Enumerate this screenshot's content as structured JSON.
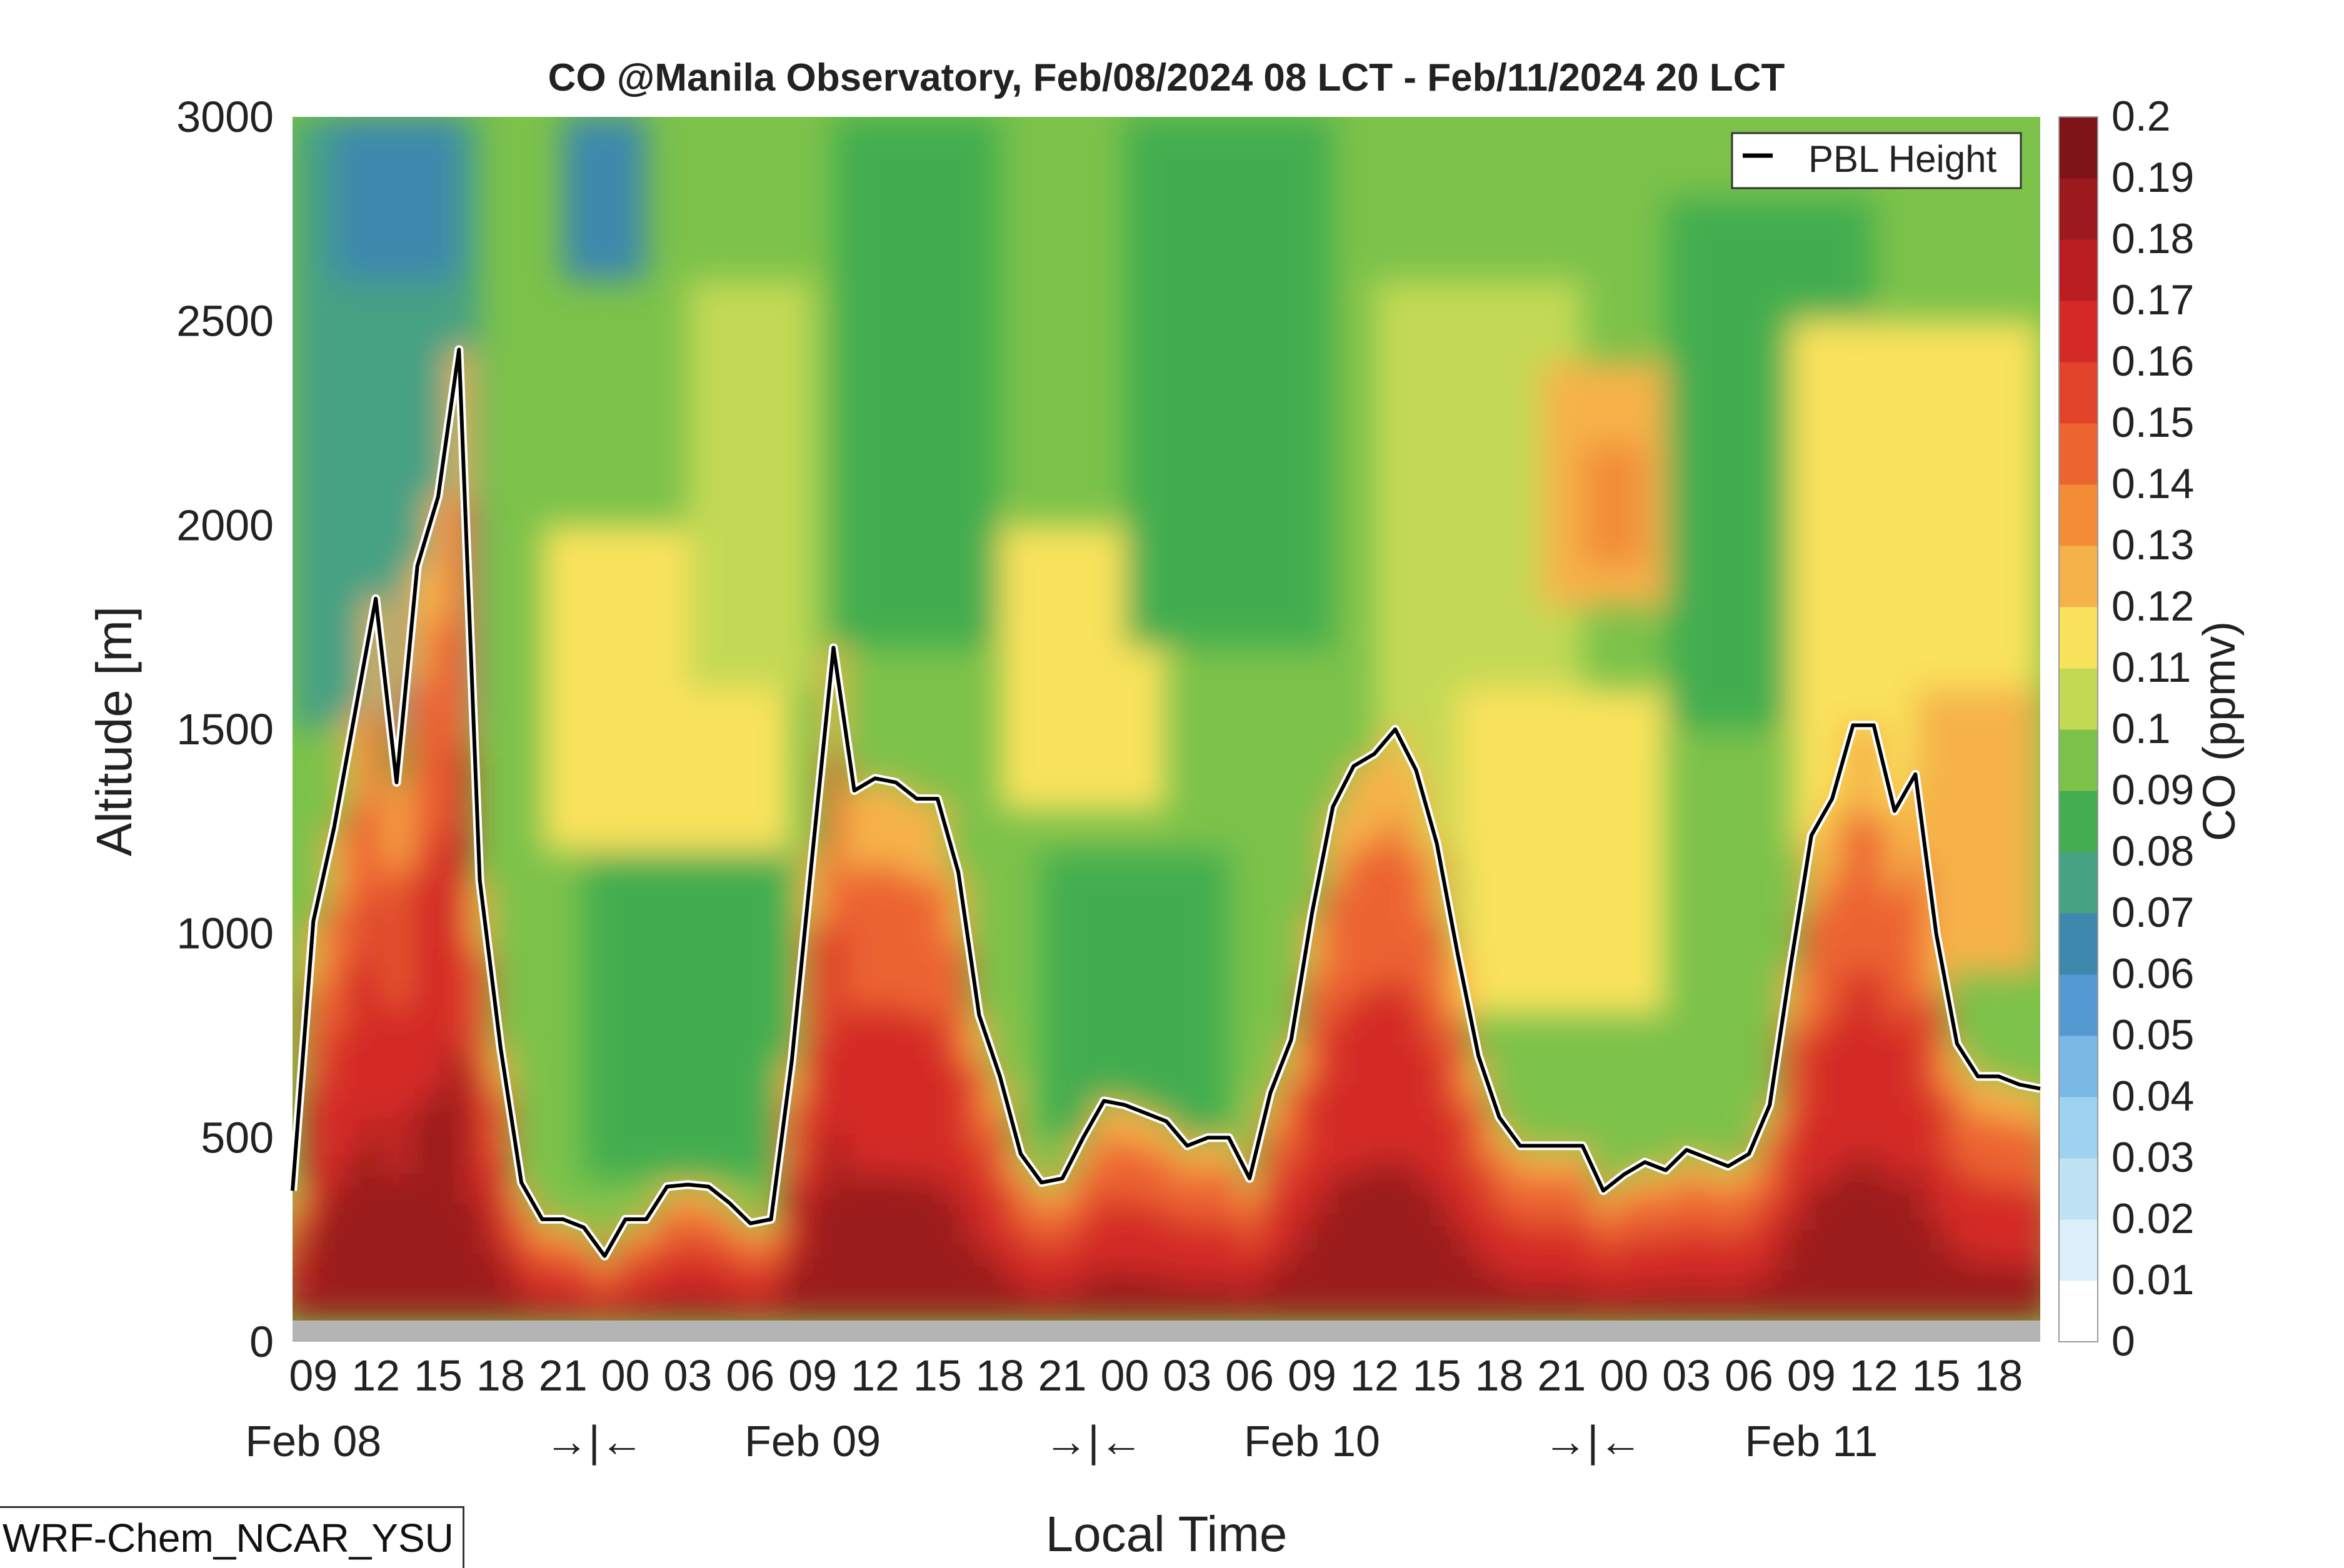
{
  "chart_data": {
    "type": "heatmap",
    "title": "CO @Manila Observatory, Feb/08/2024 08 LCT - Feb/11/2024 20 LCT",
    "xlabel": "Local Time",
    "ylabel": "Altitude [m]",
    "ylim": [
      0,
      3000
    ],
    "y_ticks": [
      0,
      500,
      1000,
      1500,
      2000,
      2500,
      3000
    ],
    "x_hour_ticks": [
      "09",
      "12",
      "15",
      "18",
      "21",
      "00",
      "03",
      "06",
      "09",
      "12",
      "15",
      "18",
      "21",
      "00",
      "03",
      "06",
      "09",
      "12",
      "15",
      "18",
      "21",
      "00",
      "03",
      "06",
      "09",
      "12",
      "15",
      "18"
    ],
    "x_day_labels": [
      {
        "label": "Feb 08",
        "at_tick": 1
      },
      {
        "label": "→|←",
        "at_tick": 5.5
      },
      {
        "label": "Feb 09",
        "at_tick": 9
      },
      {
        "label": "→|←",
        "at_tick": 13.5
      },
      {
        "label": "Feb 10",
        "at_tick": 17
      },
      {
        "label": "→|←",
        "at_tick": 21.5
      },
      {
        "label": "Feb 11",
        "at_tick": 25
      }
    ],
    "colorbar": {
      "label": "CO (ppmv)",
      "ticks": [
        "0",
        "0.01",
        "0.02",
        "0.03",
        "0.04",
        "0.05",
        "0.06",
        "0.07",
        "0.08",
        "0.09",
        "0.1",
        "0.11",
        "0.12",
        "0.13",
        "0.14",
        "0.15",
        "0.16",
        "0.17",
        "0.18",
        "0.19",
        "0.2"
      ],
      "colors": [
        "#ffffff",
        "#dceffa",
        "#bfe3f5",
        "#9dd3f0",
        "#7ab8e6",
        "#5599d3",
        "#3d88ad",
        "#47a183",
        "#43ad4f",
        "#7cc24a",
        "#c3d954",
        "#f9e25c",
        "#f6b24a",
        "#f28c37",
        "#ec6430",
        "#e2432b",
        "#d42a27",
        "#bb1e22",
        "#9b1a1d",
        "#7f1418"
      ]
    },
    "legend": {
      "position": "top-right",
      "entries": [
        "PBL Height"
      ]
    },
    "series": [
      {
        "name": "PBL Height",
        "x_hours_since_start": [
          0,
          1,
          2,
          3,
          4,
          5,
          6,
          7,
          8,
          9,
          10,
          11,
          12,
          13,
          14,
          15,
          16,
          17,
          18,
          19,
          20,
          21,
          22,
          23,
          24,
          25,
          26,
          27,
          28,
          29,
          30,
          31,
          32,
          33,
          34,
          35,
          36,
          37,
          38,
          39,
          40,
          41,
          42,
          43,
          44,
          45,
          46,
          47,
          48,
          49,
          50,
          51,
          52,
          53,
          54,
          55,
          56,
          57,
          58,
          59,
          60,
          61,
          62,
          63,
          64,
          65,
          66,
          67,
          68,
          69,
          70,
          71,
          72,
          73,
          74,
          75,
          76,
          77,
          78,
          79,
          80,
          81,
          82,
          83,
          84
        ],
        "values": [
          370,
          1030,
          1260,
          1540,
          1820,
          1370,
          1900,
          2070,
          2430,
          1130,
          720,
          390,
          300,
          300,
          280,
          210,
          300,
          300,
          380,
          385,
          380,
          340,
          290,
          300,
          690,
          1200,
          1700,
          1350,
          1380,
          1370,
          1330,
          1330,
          1150,
          800,
          650,
          460,
          390,
          400,
          500,
          590,
          580,
          560,
          540,
          480,
          500,
          500,
          400,
          610,
          740,
          1050,
          1310,
          1410,
          1440,
          1500,
          1400,
          1220,
          950,
          700,
          550,
          480,
          480,
          480,
          480,
          370,
          410,
          440,
          420,
          470,
          450,
          430,
          460,
          580,
          920,
          1240,
          1330,
          1510,
          1510,
          1300,
          1390,
          1000,
          730,
          650,
          650,
          630,
          620
        ]
      }
    ],
    "annotation": "WRF-Chem_NCAR_YSU"
  }
}
